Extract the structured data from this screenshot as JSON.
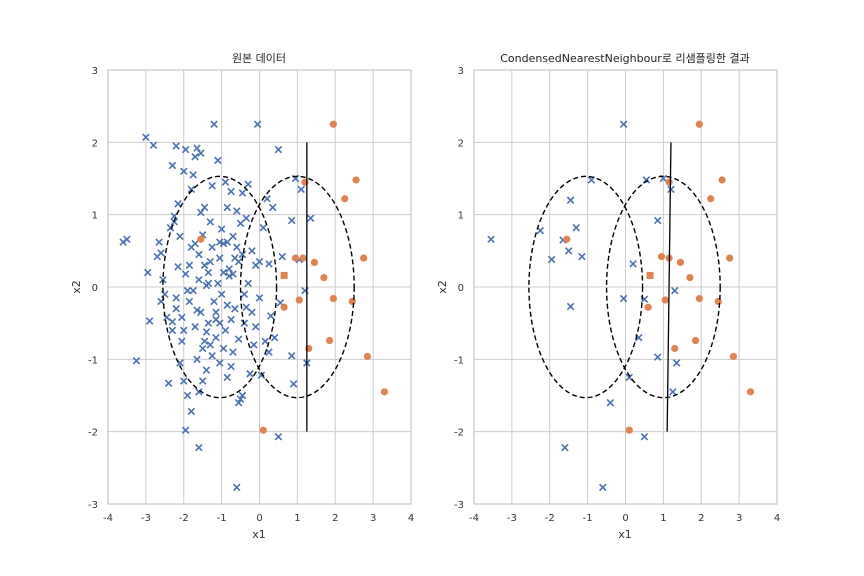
{
  "chart_data": [
    {
      "type": "scatter",
      "title": "원본 데이터",
      "xlabel": "x1",
      "ylabel": "x2",
      "xlim": [
        -4,
        4
      ],
      "ylim": [
        -3,
        3
      ],
      "xticks": [
        "-4",
        "-3",
        "-2",
        "-1",
        "0",
        "1",
        "2",
        "3",
        "4"
      ],
      "yticks": [
        "-3",
        "-2",
        "-1",
        "0",
        "1",
        "2",
        "3"
      ],
      "grid": true,
      "colors": {
        "class0": "#4c72b0",
        "class1": "#dd8452"
      },
      "class0": [
        [
          -3.6,
          0.62
        ],
        [
          -3.5,
          0.66
        ],
        [
          -3.0,
          2.07
        ],
        [
          -2.8,
          1.96
        ],
        [
          -3.25,
          -1.02
        ],
        [
          -2.95,
          0.2
        ],
        [
          -2.9,
          -0.47
        ],
        [
          -2.7,
          0.42
        ],
        [
          -2.65,
          0.62
        ],
        [
          -2.6,
          0.47
        ],
        [
          -2.55,
          0.1
        ],
        [
          -2.5,
          -0.1
        ],
        [
          -2.6,
          -0.2
        ],
        [
          -2.45,
          -0.42
        ],
        [
          -2.35,
          0.82
        ],
        [
          -2.3,
          1.68
        ],
        [
          -2.3,
          -0.48
        ],
        [
          -2.25,
          0.9
        ],
        [
          -2.2,
          1.95
        ],
        [
          -2.2,
          -0.3
        ],
        [
          -2.15,
          1.15
        ],
        [
          -2.1,
          0.7
        ],
        [
          -2.05,
          -0.75
        ],
        [
          -2.0,
          1.6
        ],
        [
          -1.95,
          1.9
        ],
        [
          -1.9,
          -0.05
        ],
        [
          -1.85,
          -0.2
        ],
        [
          -1.8,
          0.55
        ],
        [
          -1.75,
          1.55
        ],
        [
          -1.7,
          1.8
        ],
        [
          -1.65,
          1.92
        ],
        [
          -1.6,
          0.45
        ],
        [
          -1.55,
          1.85
        ],
        [
          -1.5,
          0.72
        ],
        [
          -1.45,
          0.3
        ],
        [
          -1.4,
          0.02
        ],
        [
          -1.35,
          -0.5
        ],
        [
          -1.3,
          0.9
        ],
        [
          -1.25,
          1.4
        ],
        [
          -1.2,
          2.25
        ],
        [
          -1.15,
          -0.35
        ],
        [
          -1.1,
          1.75
        ],
        [
          -1.05,
          0.4
        ],
        [
          -1.0,
          -0.1
        ],
        [
          -0.95,
          0.6
        ],
        [
          -0.9,
          -0.6
        ],
        [
          -0.85,
          1.1
        ],
        [
          -0.8,
          0.25
        ],
        [
          -0.75,
          -1.1
        ],
        [
          -0.7,
          0.7
        ],
        [
          -0.65,
          -0.3
        ],
        [
          -0.6,
          -2.77
        ],
        [
          -0.55,
          0.35
        ],
        [
          -0.5,
          -1.55
        ],
        [
          -0.45,
          1.3
        ],
        [
          -0.4,
          -0.5
        ],
        [
          -0.35,
          0.95
        ],
        [
          -0.3,
          0.05
        ],
        [
          -0.25,
          -1.2
        ],
        [
          -0.2,
          0.5
        ],
        [
          -0.15,
          -0.8
        ],
        [
          -0.1,
          0.3
        ],
        [
          -0.05,
          2.25
        ],
        [
          0.0,
          -0.15
        ],
        [
          0.05,
          -1.22
        ],
        [
          0.1,
          0.82
        ],
        [
          0.15,
          -0.75
        ],
        [
          0.2,
          1.22
        ],
        [
          0.25,
          0.32
        ],
        [
          0.3,
          -0.4
        ],
        [
          0.35,
          1.1
        ],
        [
          0.4,
          -0.7
        ],
        [
          0.5,
          1.9
        ],
        [
          0.5,
          -2.07
        ],
        [
          0.55,
          -0.22
        ],
        [
          0.6,
          0.42
        ],
        [
          0.85,
          0.92
        ],
        [
          0.85,
          -0.95
        ],
        [
          0.9,
          -1.34
        ],
        [
          0.95,
          1.5
        ],
        [
          1.05,
          0.38
        ],
        [
          1.1,
          1.35
        ],
        [
          1.2,
          -0.05
        ],
        [
          1.25,
          -1.05
        ],
        [
          1.35,
          0.95
        ],
        [
          -1.75,
          -0.05
        ],
        [
          -1.7,
          -0.55
        ],
        [
          -1.65,
          -1.0
        ],
        [
          -1.6,
          -2.22
        ],
        [
          -1.8,
          -1.72
        ],
        [
          -1.9,
          -1.5
        ],
        [
          -2.0,
          -1.3
        ],
        [
          -1.95,
          -1.98
        ],
        [
          -1.5,
          -1.3
        ],
        [
          -1.4,
          -1.15
        ],
        [
          -1.3,
          -0.8
        ],
        [
          -1.15,
          -0.7
        ],
        [
          -1.05,
          -1.05
        ],
        [
          -0.95,
          -0.85
        ],
        [
          -0.85,
          -0.25
        ],
        [
          -0.8,
          0.15
        ],
        [
          -0.75,
          -0.45
        ],
        [
          -0.7,
          -0.9
        ],
        [
          -0.65,
          0.4
        ],
        [
          -0.55,
          -1.6
        ],
        [
          -0.5,
          0.88
        ],
        [
          -0.45,
          0.45
        ],
        [
          -0.4,
          -0.1
        ],
        [
          -2.4,
          -1.33
        ],
        [
          -2.2,
          -0.15
        ],
        [
          -2.1,
          -1.05
        ],
        [
          -1.85,
          0.3
        ],
        [
          -1.7,
          0.6
        ],
        [
          -1.6,
          0.1
        ],
        [
          -1.55,
          -0.35
        ],
        [
          -1.45,
          -0.75
        ],
        [
          -1.35,
          0.2
        ],
        [
          -1.25,
          0.55
        ],
        [
          -1.2,
          -0.2
        ],
        [
          -1.1,
          0.05
        ],
        [
          -1.0,
          0.8
        ],
        [
          -0.9,
          1.45
        ],
        [
          -0.85,
          0.62
        ],
        [
          -0.75,
          1.32
        ],
        [
          -0.6,
          1.05
        ],
        [
          -0.3,
          1.42
        ],
        [
          -0.1,
          -0.55
        ],
        [
          0.0,
          0.35
        ],
        [
          -2.3,
          -0.6
        ],
        [
          -2.25,
          0.98
        ],
        [
          -2.05,
          -0.42
        ],
        [
          -1.95,
          0.18
        ],
        [
          -1.65,
          -0.32
        ],
        [
          -1.55,
          1.03
        ],
        [
          -1.45,
          1.1
        ],
        [
          -1.4,
          -0.62
        ],
        [
          -1.3,
          0.35
        ],
        [
          -1.15,
          -0.45
        ],
        [
          -1.05,
          0.62
        ],
        [
          -0.95,
          0.2
        ],
        [
          -0.7,
          0.18
        ],
        [
          -0.6,
          0.55
        ],
        [
          -0.35,
          -0.28
        ],
        [
          -0.2,
          -0.35
        ],
        [
          0.25,
          -0.9
        ],
        [
          -2.15,
          0.28
        ],
        [
          -1.8,
          1.35
        ],
        [
          -1.5,
          -0.85
        ],
        [
          -1.25,
          -0.95
        ],
        [
          -0.85,
          -1.25
        ],
        [
          -0.55,
          -0.72
        ],
        [
          -0.45,
          -1.5
        ],
        [
          -1.6,
          -1.45
        ],
        [
          -2.0,
          -0.6
        ],
        [
          -1.35,
          0.05
        ],
        [
          -1.05,
          -0.5
        ]
      ],
      "class1": [
        [
          1.95,
          2.25
        ],
        [
          2.55,
          1.48
        ],
        [
          2.25,
          1.22
        ],
        [
          1.2,
          1.45
        ],
        [
          2.75,
          0.4
        ],
        [
          1.7,
          0.13
        ],
        [
          1.45,
          0.34
        ],
        [
          0.95,
          0.4
        ],
        [
          1.15,
          0.4
        ],
        [
          1.05,
          -0.18
        ],
        [
          0.65,
          -0.28
        ],
        [
          1.95,
          -0.16
        ],
        [
          2.45,
          -0.2
        ],
        [
          1.85,
          -0.74
        ],
        [
          1.3,
          -0.85
        ],
        [
          2.85,
          -0.96
        ],
        [
          3.3,
          -1.45
        ],
        [
          0.1,
          -1.98
        ],
        [
          -1.55,
          0.66
        ]
      ],
      "class1_square": [
        [
          0.65,
          0.16
        ]
      ],
      "ellipses": [
        {
          "cx": -1.05,
          "cy": 0.0,
          "rx": 1.5,
          "ry": 1.53
        },
        {
          "cx": 1.0,
          "cy": 0.0,
          "rx": 1.5,
          "ry": 1.53
        }
      ],
      "decision_line": [
        [
          1.25,
          2.0
        ],
        [
          1.25,
          -2.0
        ]
      ]
    },
    {
      "type": "scatter",
      "title": "CondensedNearestNeighbour로 리샘플링한 결과",
      "xlabel": "x1",
      "ylabel": "x2",
      "xlim": [
        -4,
        4
      ],
      "ylim": [
        -3,
        3
      ],
      "xticks": [
        "-4",
        "-3",
        "-2",
        "-1",
        "0",
        "1",
        "2",
        "3",
        "4"
      ],
      "yticks": [
        "-3",
        "-2",
        "-1",
        "0",
        "1",
        "2",
        "3"
      ],
      "grid": true,
      "colors": {
        "class0": "#4c72b0",
        "class1": "#dd8452"
      },
      "class0": [
        [
          -3.55,
          0.66
        ],
        [
          -2.25,
          0.78
        ],
        [
          -1.95,
          0.38
        ],
        [
          -1.65,
          0.65
        ],
        [
          -1.5,
          0.5
        ],
        [
          -1.45,
          1.2
        ],
        [
          -1.3,
          0.82
        ],
        [
          -1.15,
          0.42
        ],
        [
          -0.9,
          1.48
        ],
        [
          -1.45,
          -0.27
        ],
        [
          -1.6,
          -2.22
        ],
        [
          -0.6,
          -2.77
        ],
        [
          -0.4,
          -1.6
        ],
        [
          -0.05,
          2.25
        ],
        [
          -0.05,
          -0.16
        ],
        [
          0.1,
          -1.25
        ],
        [
          0.2,
          0.32
        ],
        [
          0.35,
          -0.7
        ],
        [
          0.5,
          -0.17
        ],
        [
          0.5,
          -2.07
        ],
        [
          0.55,
          1.48
        ],
        [
          0.85,
          0.92
        ],
        [
          0.85,
          -0.97
        ],
        [
          1.0,
          1.5
        ],
        [
          1.2,
          1.35
        ],
        [
          1.3,
          -0.05
        ],
        [
          1.35,
          -1.05
        ],
        [
          1.25,
          -1.45
        ]
      ],
      "class1": [
        [
          1.95,
          2.25
        ],
        [
          2.55,
          1.48
        ],
        [
          2.25,
          1.22
        ],
        [
          1.15,
          1.45
        ],
        [
          2.75,
          0.4
        ],
        [
          1.7,
          0.13
        ],
        [
          1.45,
          0.34
        ],
        [
          0.95,
          0.42
        ],
        [
          1.15,
          0.4
        ],
        [
          1.05,
          -0.18
        ],
        [
          0.6,
          -0.28
        ],
        [
          1.95,
          -0.16
        ],
        [
          2.45,
          -0.2
        ],
        [
          1.85,
          -0.74
        ],
        [
          1.3,
          -0.85
        ],
        [
          2.85,
          -0.96
        ],
        [
          3.3,
          -1.45
        ],
        [
          0.1,
          -1.98
        ],
        [
          -1.55,
          0.66
        ]
      ],
      "class1_square": [
        [
          0.65,
          0.16
        ]
      ],
      "ellipses": [
        {
          "cx": -1.05,
          "cy": 0.0,
          "rx": 1.5,
          "ry": 1.53
        },
        {
          "cx": 1.0,
          "cy": 0.0,
          "rx": 1.5,
          "ry": 1.53
        }
      ],
      "decision_line": [
        [
          1.2,
          2.0
        ],
        [
          1.1,
          -2.0
        ]
      ]
    }
  ]
}
